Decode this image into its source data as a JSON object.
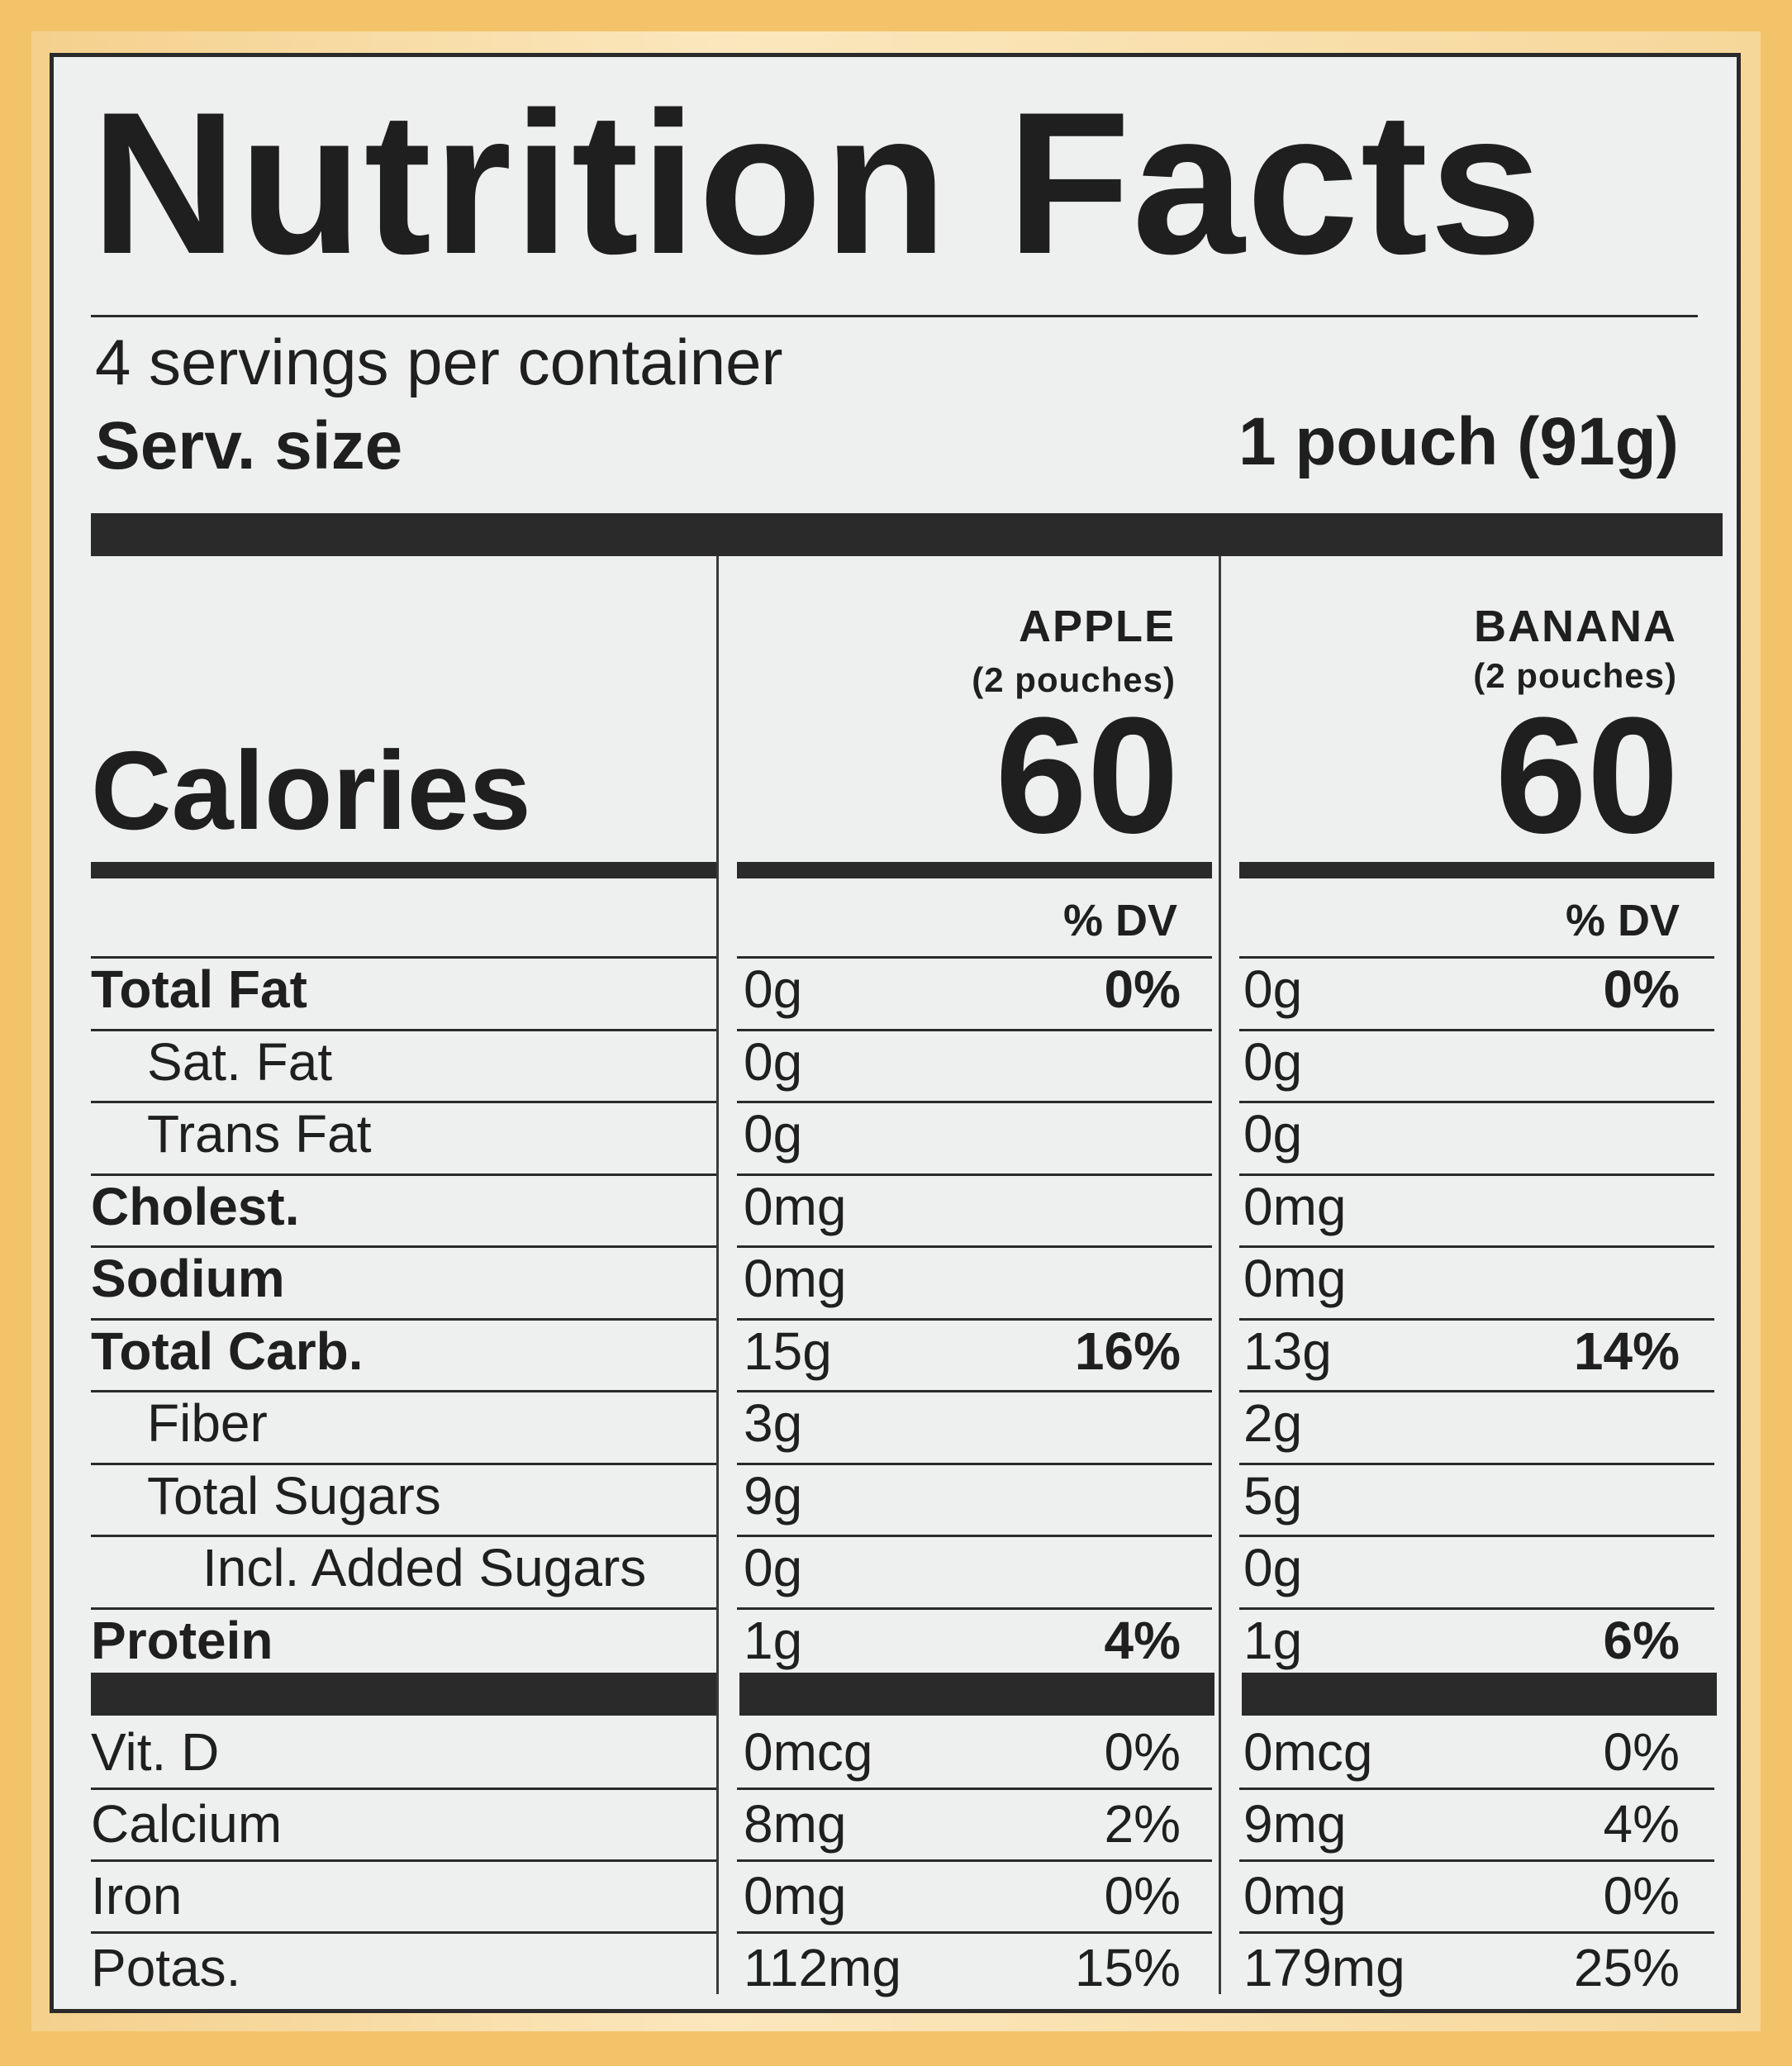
{
  "title": "Nutrition Facts",
  "servings_per_container": "4 servings per container",
  "serving_size_label": "Serv. size",
  "serving_size_value": "1 pouch (91g)",
  "calories_label": "Calories",
  "columns": [
    {
      "name": "APPLE",
      "sub": "(2 pouches)",
      "calories": "60",
      "dv_label": "% DV"
    },
    {
      "name": "BANANA",
      "sub": "(2 pouches)",
      "calories": "60",
      "dv_label": "% DV"
    }
  ],
  "nutrients": [
    {
      "label": "Total Fat",
      "bold": true,
      "indent": 0,
      "apple_amt": "0g",
      "apple_dv": "0%",
      "banana_amt": "0g",
      "banana_dv": "0%",
      "dv_bold": true
    },
    {
      "label": "Sat. Fat",
      "bold": false,
      "indent": 1,
      "apple_amt": "0g",
      "apple_dv": "",
      "banana_amt": "0g",
      "banana_dv": ""
    },
    {
      "label": "Trans Fat",
      "bold": false,
      "indent": 1,
      "apple_amt": "0g",
      "apple_dv": "",
      "banana_amt": "0g",
      "banana_dv": ""
    },
    {
      "label": "Cholest.",
      "bold": true,
      "indent": 0,
      "apple_amt": "0mg",
      "apple_dv": "",
      "banana_amt": "0mg",
      "banana_dv": ""
    },
    {
      "label": "Sodium",
      "bold": true,
      "indent": 0,
      "apple_amt": "0mg",
      "apple_dv": "",
      "banana_amt": "0mg",
      "banana_dv": ""
    },
    {
      "label": "Total Carb.",
      "bold": true,
      "indent": 0,
      "apple_amt": "15g",
      "apple_dv": "16%",
      "banana_amt": "13g",
      "banana_dv": "14%",
      "dv_bold": true
    },
    {
      "label": "Fiber",
      "bold": false,
      "indent": 1,
      "apple_amt": "3g",
      "apple_dv": "",
      "banana_amt": "2g",
      "banana_dv": ""
    },
    {
      "label": "Total Sugars",
      "bold": false,
      "indent": 1,
      "apple_amt": "9g",
      "apple_dv": "",
      "banana_amt": "5g",
      "banana_dv": ""
    },
    {
      "label": "Incl. Added Sugars",
      "bold": false,
      "indent": 2,
      "apple_amt": "0g",
      "apple_dv": "",
      "banana_amt": "0g",
      "banana_dv": ""
    },
    {
      "label": "Protein",
      "bold": true,
      "indent": 0,
      "apple_amt": "1g",
      "apple_dv": "4%",
      "banana_amt": "1g",
      "banana_dv": "6%",
      "dv_bold": true
    }
  ],
  "vitamins": [
    {
      "label": "Vit. D",
      "apple_amt": "0mcg",
      "apple_dv": "0%",
      "banana_amt": "0mcg",
      "banana_dv": "0%"
    },
    {
      "label": "Calcium",
      "apple_amt": "8mg",
      "apple_dv": "2%",
      "banana_amt": "9mg",
      "banana_dv": "4%"
    },
    {
      "label": "Iron",
      "apple_amt": "0mg",
      "apple_dv": "0%",
      "banana_amt": "0mg",
      "banana_dv": "0%"
    },
    {
      "label": "Potas.",
      "apple_amt": "112mg",
      "apple_dv": "15%",
      "banana_amt": "179mg",
      "banana_dv": "25%"
    }
  ]
}
